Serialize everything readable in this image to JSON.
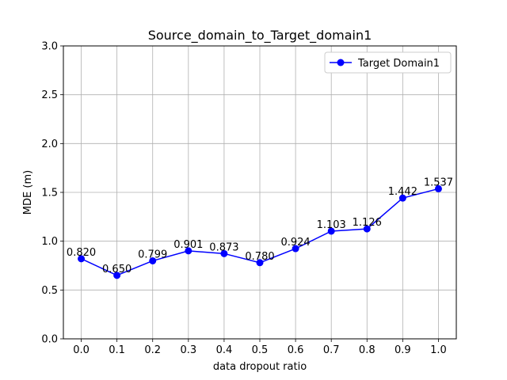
{
  "chart_data": {
    "type": "line",
    "title": "Source_domain_to_Target_domain1",
    "xlabel": "data dropout ratio",
    "ylabel": "MDE (m)",
    "x": [
      0.0,
      0.1,
      0.2,
      0.3,
      0.4,
      0.5,
      0.6,
      0.7,
      0.8,
      0.9,
      1.0
    ],
    "x_tick_labels": [
      "0.0",
      "0.1",
      "0.2",
      "0.3",
      "0.4",
      "0.5",
      "0.6",
      "0.7",
      "0.8",
      "0.9",
      "1.0"
    ],
    "y_ticks": [
      0.0,
      0.5,
      1.0,
      1.5,
      2.0,
      2.5,
      3.0
    ],
    "y_tick_labels": [
      "0.0",
      "0.5",
      "1.0",
      "1.5",
      "2.0",
      "2.5",
      "3.0"
    ],
    "xlim": [
      -0.05,
      1.05
    ],
    "ylim": [
      0.0,
      3.0
    ],
    "grid": true,
    "legend_position": "top-right",
    "series": [
      {
        "name": "Target Domain1",
        "color": "#0000ff",
        "marker": "circle",
        "values": [
          0.82,
          0.65,
          0.799,
          0.901,
          0.873,
          0.78,
          0.924,
          1.103,
          1.126,
          1.442,
          1.537
        ],
        "data_labels": [
          "0.820",
          "0.650",
          "0.799",
          "0.901",
          "0.873",
          "0.780",
          "0.924",
          "1.103",
          "1.126",
          "1.442",
          "1.537"
        ]
      }
    ]
  }
}
